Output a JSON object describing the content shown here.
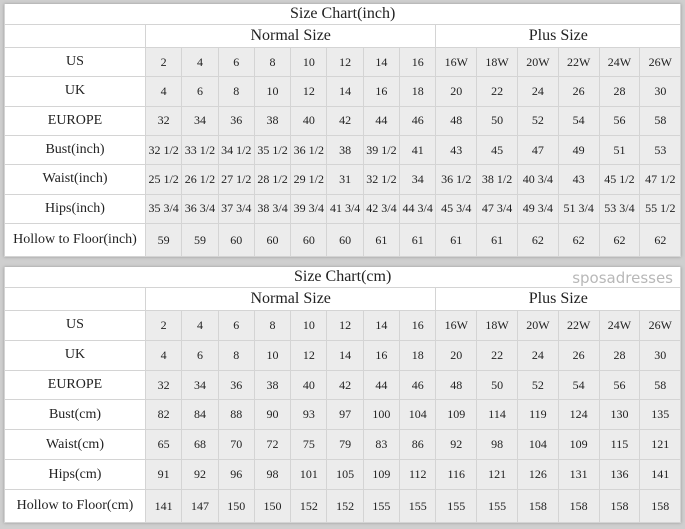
{
  "watermark": "sposadresses",
  "charts": [
    {
      "title": "Size Chart(inch)",
      "normal_label": "Normal Size",
      "plus_label": "Plus Size",
      "rows": [
        {
          "label": "US",
          "values": [
            "2",
            "4",
            "6",
            "8",
            "10",
            "12",
            "14",
            "16",
            "16W",
            "18W",
            "20W",
            "22W",
            "24W",
            "26W"
          ]
        },
        {
          "label": "UK",
          "values": [
            "4",
            "6",
            "8",
            "10",
            "12",
            "14",
            "16",
            "18",
            "20",
            "22",
            "24",
            "26",
            "28",
            "30"
          ]
        },
        {
          "label": "EUROPE",
          "values": [
            "32",
            "34",
            "36",
            "38",
            "40",
            "42",
            "44",
            "46",
            "48",
            "50",
            "52",
            "54",
            "56",
            "58"
          ]
        },
        {
          "label": "Bust(inch)",
          "values": [
            "32 1/2",
            "33 1/2",
            "34 1/2",
            "35 1/2",
            "36 1/2",
            "38",
            "39 1/2",
            "41",
            "43",
            "45",
            "47",
            "49",
            "51",
            "53"
          ]
        },
        {
          "label": "Waist(inch)",
          "values": [
            "25 1/2",
            "26 1/2",
            "27 1/2",
            "28 1/2",
            "29 1/2",
            "31",
            "32 1/2",
            "34",
            "36 1/2",
            "38 1/2",
            "40 3/4",
            "43",
            "45 1/2",
            "47 1/2"
          ]
        },
        {
          "label": "Hips(inch)",
          "values": [
            "35 3/4",
            "36 3/4",
            "37 3/4",
            "38 3/4",
            "39 3/4",
            "41 3/4",
            "42 3/4",
            "44 3/4",
            "45 3/4",
            "47 3/4",
            "49 3/4",
            "51 3/4",
            "53 3/4",
            "55 1/2"
          ]
        },
        {
          "label": "Hollow to Floor(inch)",
          "values": [
            "59",
            "59",
            "60",
            "60",
            "60",
            "60",
            "61",
            "61",
            "61",
            "61",
            "62",
            "62",
            "62",
            "62"
          ]
        }
      ]
    },
    {
      "title": "Size Chart(cm)",
      "normal_label": "Normal Size",
      "plus_label": "Plus Size",
      "rows": [
        {
          "label": "US",
          "values": [
            "2",
            "4",
            "6",
            "8",
            "10",
            "12",
            "14",
            "16",
            "16W",
            "18W",
            "20W",
            "22W",
            "24W",
            "26W"
          ]
        },
        {
          "label": "UK",
          "values": [
            "4",
            "6",
            "8",
            "10",
            "12",
            "14",
            "16",
            "18",
            "20",
            "22",
            "24",
            "26",
            "28",
            "30"
          ]
        },
        {
          "label": "EUROPE",
          "values": [
            "32",
            "34",
            "36",
            "38",
            "40",
            "42",
            "44",
            "46",
            "48",
            "50",
            "52",
            "54",
            "56",
            "58"
          ]
        },
        {
          "label": "Bust(cm)",
          "values": [
            "82",
            "84",
            "88",
            "90",
            "93",
            "97",
            "100",
            "104",
            "109",
            "114",
            "119",
            "124",
            "130",
            "135"
          ]
        },
        {
          "label": "Waist(cm)",
          "values": [
            "65",
            "68",
            "70",
            "72",
            "75",
            "79",
            "83",
            "86",
            "92",
            "98",
            "104",
            "109",
            "115",
            "121"
          ]
        },
        {
          "label": "Hips(cm)",
          "values": [
            "91",
            "92",
            "96",
            "98",
            "101",
            "105",
            "109",
            "112",
            "116",
            "121",
            "126",
            "131",
            "136",
            "141"
          ]
        },
        {
          "label": "Hollow to Floor(cm)",
          "values": [
            "141",
            "147",
            "150",
            "150",
            "152",
            "152",
            "155",
            "155",
            "155",
            "155",
            "158",
            "158",
            "158",
            "158"
          ]
        }
      ]
    }
  ]
}
